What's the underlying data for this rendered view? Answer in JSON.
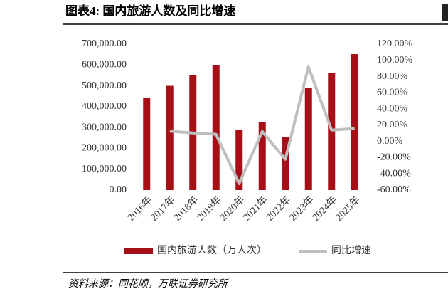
{
  "chart_data": {
    "type": "bar-line",
    "title": "图表4:  国内旅游人数及同比增速",
    "source": "资料来源：同花顺，万联证券研究所",
    "categories": [
      "2016年",
      "2017年",
      "2018年",
      "2019年",
      "2020年",
      "2021年",
      "2022年",
      "2023年",
      "2024年",
      "2025年"
    ],
    "series": [
      {
        "name": "国内旅游人数（万人次）",
        "type": "bar",
        "color": "#a50f15",
        "values": [
          444000,
          500000,
          553000,
          600000,
          287000,
          325000,
          253000,
          489000,
          563000,
          652000
        ]
      },
      {
        "name": "同比增速",
        "type": "line",
        "axis": "y2",
        "color": "#bfbfbf",
        "values": [
          null,
          12.6,
          10.5,
          8.8,
          -52,
          12.3,
          -22,
          92,
          14,
          15.8
        ]
      }
    ],
    "ylim": [
      0,
      700000
    ],
    "yticks": [
      {
        "value": 0,
        "label": "0.00"
      },
      {
        "value": 100000,
        "label": "100,000.00"
      },
      {
        "value": 200000,
        "label": "200,000.00"
      },
      {
        "value": 300000,
        "label": "300,000.00"
      },
      {
        "value": 400000,
        "label": "400,000.00"
      },
      {
        "value": 500000,
        "label": "500,000.00"
      },
      {
        "value": 600000,
        "label": "600,000.00"
      },
      {
        "value": 700000,
        "label": "700,000.00"
      }
    ],
    "y2lim": [
      -60,
      120
    ],
    "y2ticks": [
      {
        "value": -60,
        "label": "-60.00%"
      },
      {
        "value": -40,
        "label": "-40.00%"
      },
      {
        "value": -20,
        "label": "-20.00%"
      },
      {
        "value": 0,
        "label": "0.00%"
      },
      {
        "value": 20,
        "label": "20.00%"
      },
      {
        "value": 40,
        "label": "40.00%"
      },
      {
        "value": 60,
        "label": "60.00%"
      },
      {
        "value": 80,
        "label": "80.00%"
      },
      {
        "value": 100,
        "label": "100.00%"
      },
      {
        "value": 120,
        "label": "120.00%"
      }
    ]
  }
}
